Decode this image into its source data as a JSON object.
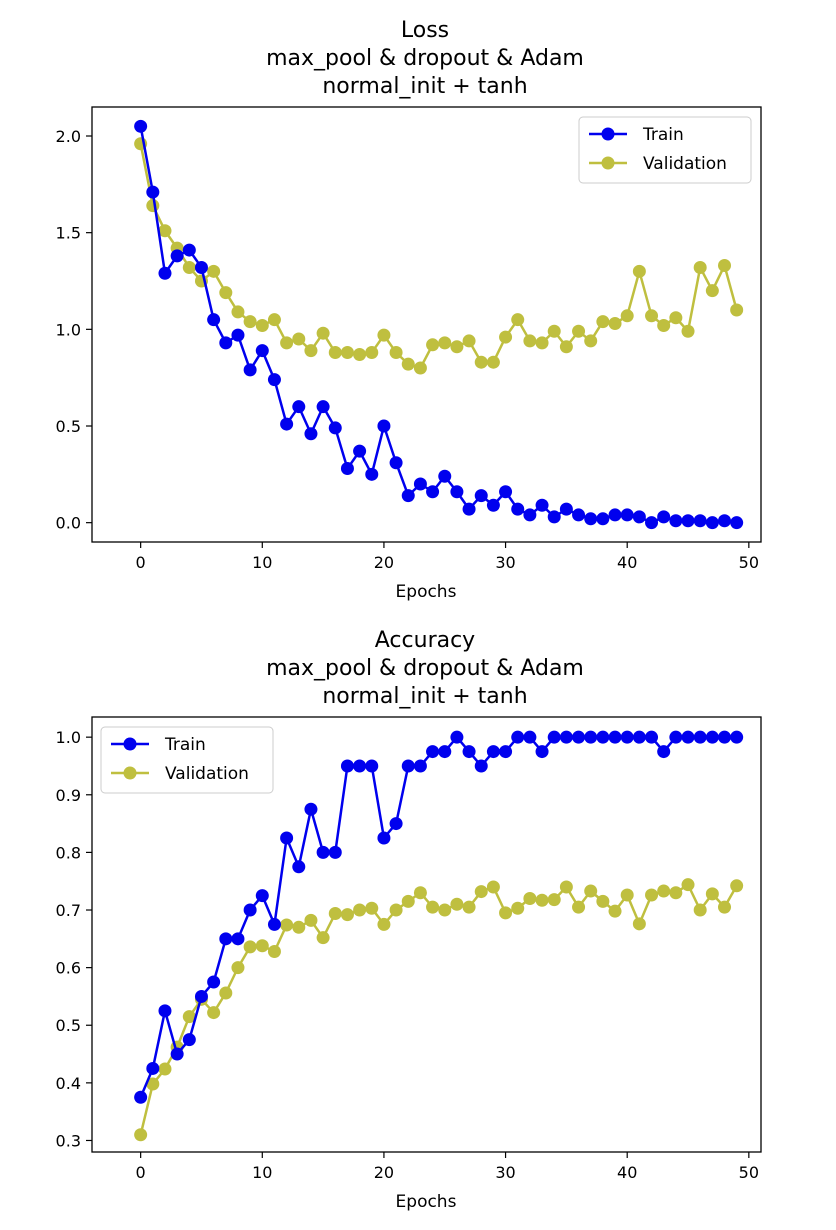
{
  "chart_data": [
    {
      "type": "line",
      "title_lines": [
        "Loss",
        "max_pool & dropout & Adam",
        "normal_init + tanh"
      ],
      "xlabel": "Epochs",
      "ylabel": "",
      "xlim": [
        -4,
        51
      ],
      "ylim": [
        -0.1,
        2.15
      ],
      "xticks": [
        0,
        10,
        20,
        30,
        40,
        50
      ],
      "yticks": [
        0.0,
        0.5,
        1.0,
        1.5,
        2.0
      ],
      "ytick_labels": [
        "0.0",
        "0.5",
        "1.0",
        "1.5",
        "2.0"
      ],
      "legend_position": "top-right",
      "grid": false,
      "x": [
        0,
        1,
        2,
        3,
        4,
        5,
        6,
        7,
        8,
        9,
        10,
        11,
        12,
        13,
        14,
        15,
        16,
        17,
        18,
        19,
        20,
        21,
        22,
        23,
        24,
        25,
        26,
        27,
        28,
        29,
        30,
        31,
        32,
        33,
        34,
        35,
        36,
        37,
        38,
        39,
        40,
        41,
        42,
        43,
        44,
        45,
        46,
        47,
        48,
        49
      ],
      "series": [
        {
          "name": "Train",
          "color": "#0000ee",
          "values": [
            2.05,
            1.71,
            1.29,
            1.38,
            1.41,
            1.32,
            1.05,
            0.93,
            0.97,
            0.79,
            0.89,
            0.74,
            0.51,
            0.6,
            0.46,
            0.6,
            0.49,
            0.28,
            0.37,
            0.25,
            0.5,
            0.31,
            0.14,
            0.2,
            0.16,
            0.24,
            0.16,
            0.07,
            0.14,
            0.09,
            0.16,
            0.07,
            0.04,
            0.09,
            0.03,
            0.07,
            0.04,
            0.02,
            0.02,
            0.04,
            0.04,
            0.03,
            0.0,
            0.03,
            0.01,
            0.01,
            0.01,
            0.0,
            0.01,
            0.0
          ]
        },
        {
          "name": "Validation",
          "color": "#bfbf3f",
          "values": [
            1.96,
            1.64,
            1.51,
            1.42,
            1.32,
            1.25,
            1.3,
            1.19,
            1.09,
            1.04,
            1.02,
            1.05,
            0.93,
            0.95,
            0.89,
            0.98,
            0.88,
            0.88,
            0.87,
            0.88,
            0.97,
            0.88,
            0.82,
            0.8,
            0.92,
            0.93,
            0.91,
            0.94,
            0.83,
            0.83,
            0.96,
            1.05,
            0.94,
            0.93,
            0.99,
            0.91,
            0.99,
            0.94,
            1.04,
            1.03,
            1.07,
            1.3,
            1.07,
            1.02,
            1.06,
            0.99,
            1.32,
            1.2,
            1.33,
            1.1
          ]
        }
      ]
    },
    {
      "type": "line",
      "title_lines": [
        "Accuracy",
        "max_pool & dropout & Adam",
        "normal_init + tanh"
      ],
      "xlabel": "Epochs",
      "ylabel": "",
      "xlim": [
        -4,
        51
      ],
      "ylim": [
        0.28,
        1.035
      ],
      "xticks": [
        0,
        10,
        20,
        30,
        40,
        50
      ],
      "yticks": [
        0.3,
        0.4,
        0.5,
        0.6,
        0.7,
        0.8,
        0.9,
        1.0
      ],
      "ytick_labels": [
        "0.3",
        "0.4",
        "0.5",
        "0.6",
        "0.7",
        "0.8",
        "0.9",
        "1.0"
      ],
      "legend_position": "top-left",
      "grid": false,
      "x": [
        0,
        1,
        2,
        3,
        4,
        5,
        6,
        7,
        8,
        9,
        10,
        11,
        12,
        13,
        14,
        15,
        16,
        17,
        18,
        19,
        20,
        21,
        22,
        23,
        24,
        25,
        26,
        27,
        28,
        29,
        30,
        31,
        32,
        33,
        34,
        35,
        36,
        37,
        38,
        39,
        40,
        41,
        42,
        43,
        44,
        45,
        46,
        47,
        48,
        49
      ],
      "series": [
        {
          "name": "Train",
          "color": "#0000ee",
          "values": [
            0.375,
            0.425,
            0.525,
            0.45,
            0.475,
            0.55,
            0.575,
            0.65,
            0.65,
            0.7,
            0.725,
            0.675,
            0.825,
            0.775,
            0.875,
            0.8,
            0.8,
            0.95,
            0.95,
            0.95,
            0.825,
            0.85,
            0.95,
            0.95,
            0.975,
            0.975,
            1.0,
            0.975,
            0.95,
            0.975,
            0.975,
            1.0,
            1.0,
            0.975,
            1.0,
            1.0,
            1.0,
            1.0,
            1.0,
            1.0,
            1.0,
            1.0,
            1.0,
            0.975,
            1.0,
            1.0,
            1.0,
            1.0,
            1.0,
            1.0
          ]
        },
        {
          "name": "Validation",
          "color": "#bfbf3f",
          "values": [
            0.31,
            0.398,
            0.424,
            0.462,
            0.515,
            0.545,
            0.522,
            0.556,
            0.6,
            0.636,
            0.638,
            0.628,
            0.674,
            0.67,
            0.682,
            0.652,
            0.694,
            0.692,
            0.7,
            0.703,
            0.675,
            0.7,
            0.715,
            0.73,
            0.705,
            0.7,
            0.71,
            0.705,
            0.732,
            0.74,
            0.695,
            0.703,
            0.72,
            0.717,
            0.718,
            0.74,
            0.705,
            0.733,
            0.715,
            0.698,
            0.726,
            0.676,
            0.726,
            0.733,
            0.73,
            0.744,
            0.7,
            0.728,
            0.705,
            0.742
          ]
        }
      ]
    }
  ]
}
